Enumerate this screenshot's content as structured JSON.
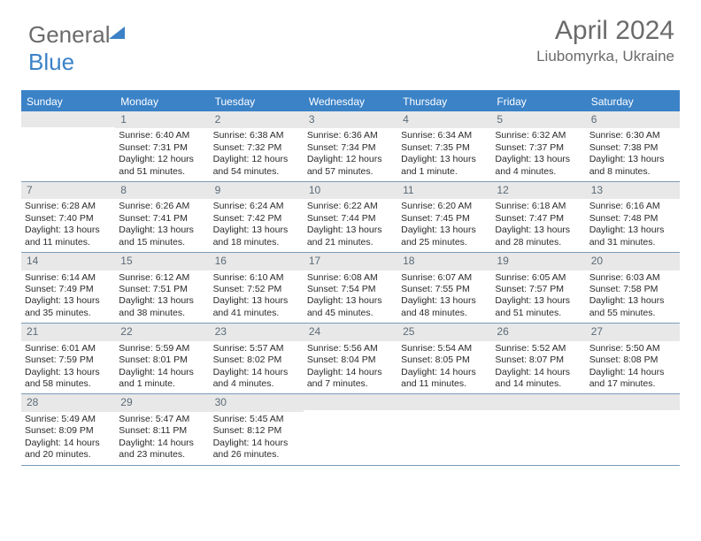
{
  "brand": {
    "part1": "General",
    "part2": "Blue"
  },
  "header": {
    "month_title": "April 2024",
    "location": "Liubomyrka, Ukraine"
  },
  "colors": {
    "header_blue": "#3b82c7",
    "text_grey": "#6b6b6b",
    "daynum_bg": "#e8e8e8",
    "week_border": "#7a9bb8"
  },
  "weekdays": [
    "Sunday",
    "Monday",
    "Tuesday",
    "Wednesday",
    "Thursday",
    "Friday",
    "Saturday"
  ],
  "weeks": [
    [
      {
        "n": "",
        "sr": "",
        "ss": "",
        "dl": ""
      },
      {
        "n": "1",
        "sr": "Sunrise: 6:40 AM",
        "ss": "Sunset: 7:31 PM",
        "dl": "Daylight: 12 hours and 51 minutes."
      },
      {
        "n": "2",
        "sr": "Sunrise: 6:38 AM",
        "ss": "Sunset: 7:32 PM",
        "dl": "Daylight: 12 hours and 54 minutes."
      },
      {
        "n": "3",
        "sr": "Sunrise: 6:36 AM",
        "ss": "Sunset: 7:34 PM",
        "dl": "Daylight: 12 hours and 57 minutes."
      },
      {
        "n": "4",
        "sr": "Sunrise: 6:34 AM",
        "ss": "Sunset: 7:35 PM",
        "dl": "Daylight: 13 hours and 1 minute."
      },
      {
        "n": "5",
        "sr": "Sunrise: 6:32 AM",
        "ss": "Sunset: 7:37 PM",
        "dl": "Daylight: 13 hours and 4 minutes."
      },
      {
        "n": "6",
        "sr": "Sunrise: 6:30 AM",
        "ss": "Sunset: 7:38 PM",
        "dl": "Daylight: 13 hours and 8 minutes."
      }
    ],
    [
      {
        "n": "7",
        "sr": "Sunrise: 6:28 AM",
        "ss": "Sunset: 7:40 PM",
        "dl": "Daylight: 13 hours and 11 minutes."
      },
      {
        "n": "8",
        "sr": "Sunrise: 6:26 AM",
        "ss": "Sunset: 7:41 PM",
        "dl": "Daylight: 13 hours and 15 minutes."
      },
      {
        "n": "9",
        "sr": "Sunrise: 6:24 AM",
        "ss": "Sunset: 7:42 PM",
        "dl": "Daylight: 13 hours and 18 minutes."
      },
      {
        "n": "10",
        "sr": "Sunrise: 6:22 AM",
        "ss": "Sunset: 7:44 PM",
        "dl": "Daylight: 13 hours and 21 minutes."
      },
      {
        "n": "11",
        "sr": "Sunrise: 6:20 AM",
        "ss": "Sunset: 7:45 PM",
        "dl": "Daylight: 13 hours and 25 minutes."
      },
      {
        "n": "12",
        "sr": "Sunrise: 6:18 AM",
        "ss": "Sunset: 7:47 PM",
        "dl": "Daylight: 13 hours and 28 minutes."
      },
      {
        "n": "13",
        "sr": "Sunrise: 6:16 AM",
        "ss": "Sunset: 7:48 PM",
        "dl": "Daylight: 13 hours and 31 minutes."
      }
    ],
    [
      {
        "n": "14",
        "sr": "Sunrise: 6:14 AM",
        "ss": "Sunset: 7:49 PM",
        "dl": "Daylight: 13 hours and 35 minutes."
      },
      {
        "n": "15",
        "sr": "Sunrise: 6:12 AM",
        "ss": "Sunset: 7:51 PM",
        "dl": "Daylight: 13 hours and 38 minutes."
      },
      {
        "n": "16",
        "sr": "Sunrise: 6:10 AM",
        "ss": "Sunset: 7:52 PM",
        "dl": "Daylight: 13 hours and 41 minutes."
      },
      {
        "n": "17",
        "sr": "Sunrise: 6:08 AM",
        "ss": "Sunset: 7:54 PM",
        "dl": "Daylight: 13 hours and 45 minutes."
      },
      {
        "n": "18",
        "sr": "Sunrise: 6:07 AM",
        "ss": "Sunset: 7:55 PM",
        "dl": "Daylight: 13 hours and 48 minutes."
      },
      {
        "n": "19",
        "sr": "Sunrise: 6:05 AM",
        "ss": "Sunset: 7:57 PM",
        "dl": "Daylight: 13 hours and 51 minutes."
      },
      {
        "n": "20",
        "sr": "Sunrise: 6:03 AM",
        "ss": "Sunset: 7:58 PM",
        "dl": "Daylight: 13 hours and 55 minutes."
      }
    ],
    [
      {
        "n": "21",
        "sr": "Sunrise: 6:01 AM",
        "ss": "Sunset: 7:59 PM",
        "dl": "Daylight: 13 hours and 58 minutes."
      },
      {
        "n": "22",
        "sr": "Sunrise: 5:59 AM",
        "ss": "Sunset: 8:01 PM",
        "dl": "Daylight: 14 hours and 1 minute."
      },
      {
        "n": "23",
        "sr": "Sunrise: 5:57 AM",
        "ss": "Sunset: 8:02 PM",
        "dl": "Daylight: 14 hours and 4 minutes."
      },
      {
        "n": "24",
        "sr": "Sunrise: 5:56 AM",
        "ss": "Sunset: 8:04 PM",
        "dl": "Daylight: 14 hours and 7 minutes."
      },
      {
        "n": "25",
        "sr": "Sunrise: 5:54 AM",
        "ss": "Sunset: 8:05 PM",
        "dl": "Daylight: 14 hours and 11 minutes."
      },
      {
        "n": "26",
        "sr": "Sunrise: 5:52 AM",
        "ss": "Sunset: 8:07 PM",
        "dl": "Daylight: 14 hours and 14 minutes."
      },
      {
        "n": "27",
        "sr": "Sunrise: 5:50 AM",
        "ss": "Sunset: 8:08 PM",
        "dl": "Daylight: 14 hours and 17 minutes."
      }
    ],
    [
      {
        "n": "28",
        "sr": "Sunrise: 5:49 AM",
        "ss": "Sunset: 8:09 PM",
        "dl": "Daylight: 14 hours and 20 minutes."
      },
      {
        "n": "29",
        "sr": "Sunrise: 5:47 AM",
        "ss": "Sunset: 8:11 PM",
        "dl": "Daylight: 14 hours and 23 minutes."
      },
      {
        "n": "30",
        "sr": "Sunrise: 5:45 AM",
        "ss": "Sunset: 8:12 PM",
        "dl": "Daylight: 14 hours and 26 minutes."
      },
      {
        "n": "",
        "sr": "",
        "ss": "",
        "dl": ""
      },
      {
        "n": "",
        "sr": "",
        "ss": "",
        "dl": ""
      },
      {
        "n": "",
        "sr": "",
        "ss": "",
        "dl": ""
      },
      {
        "n": "",
        "sr": "",
        "ss": "",
        "dl": ""
      }
    ]
  ]
}
